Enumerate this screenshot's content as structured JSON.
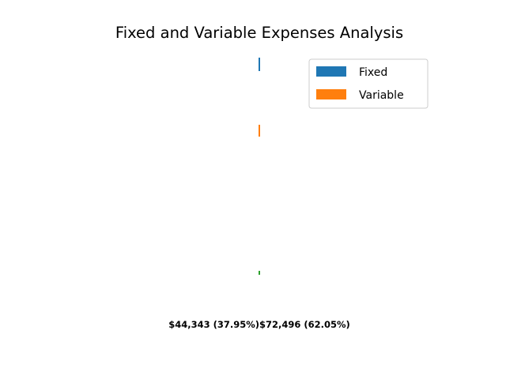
{
  "chart_data": {
    "type": "bar",
    "title": "Fixed and Variable Expenses Analysis",
    "legend_position": "top-right",
    "grid": false,
    "axes_visible": false,
    "series": [
      {
        "name": "Fixed",
        "value": 44343,
        "color": "#1f77b4",
        "label": "$44,343  (37.95%)"
      },
      {
        "name": "Variable",
        "value": 72496,
        "color": "#ff7f0e",
        "label": "$72,496  (62.05%)"
      }
    ],
    "extra_marks": [
      {
        "color": "#2ca02c"
      }
    ]
  }
}
